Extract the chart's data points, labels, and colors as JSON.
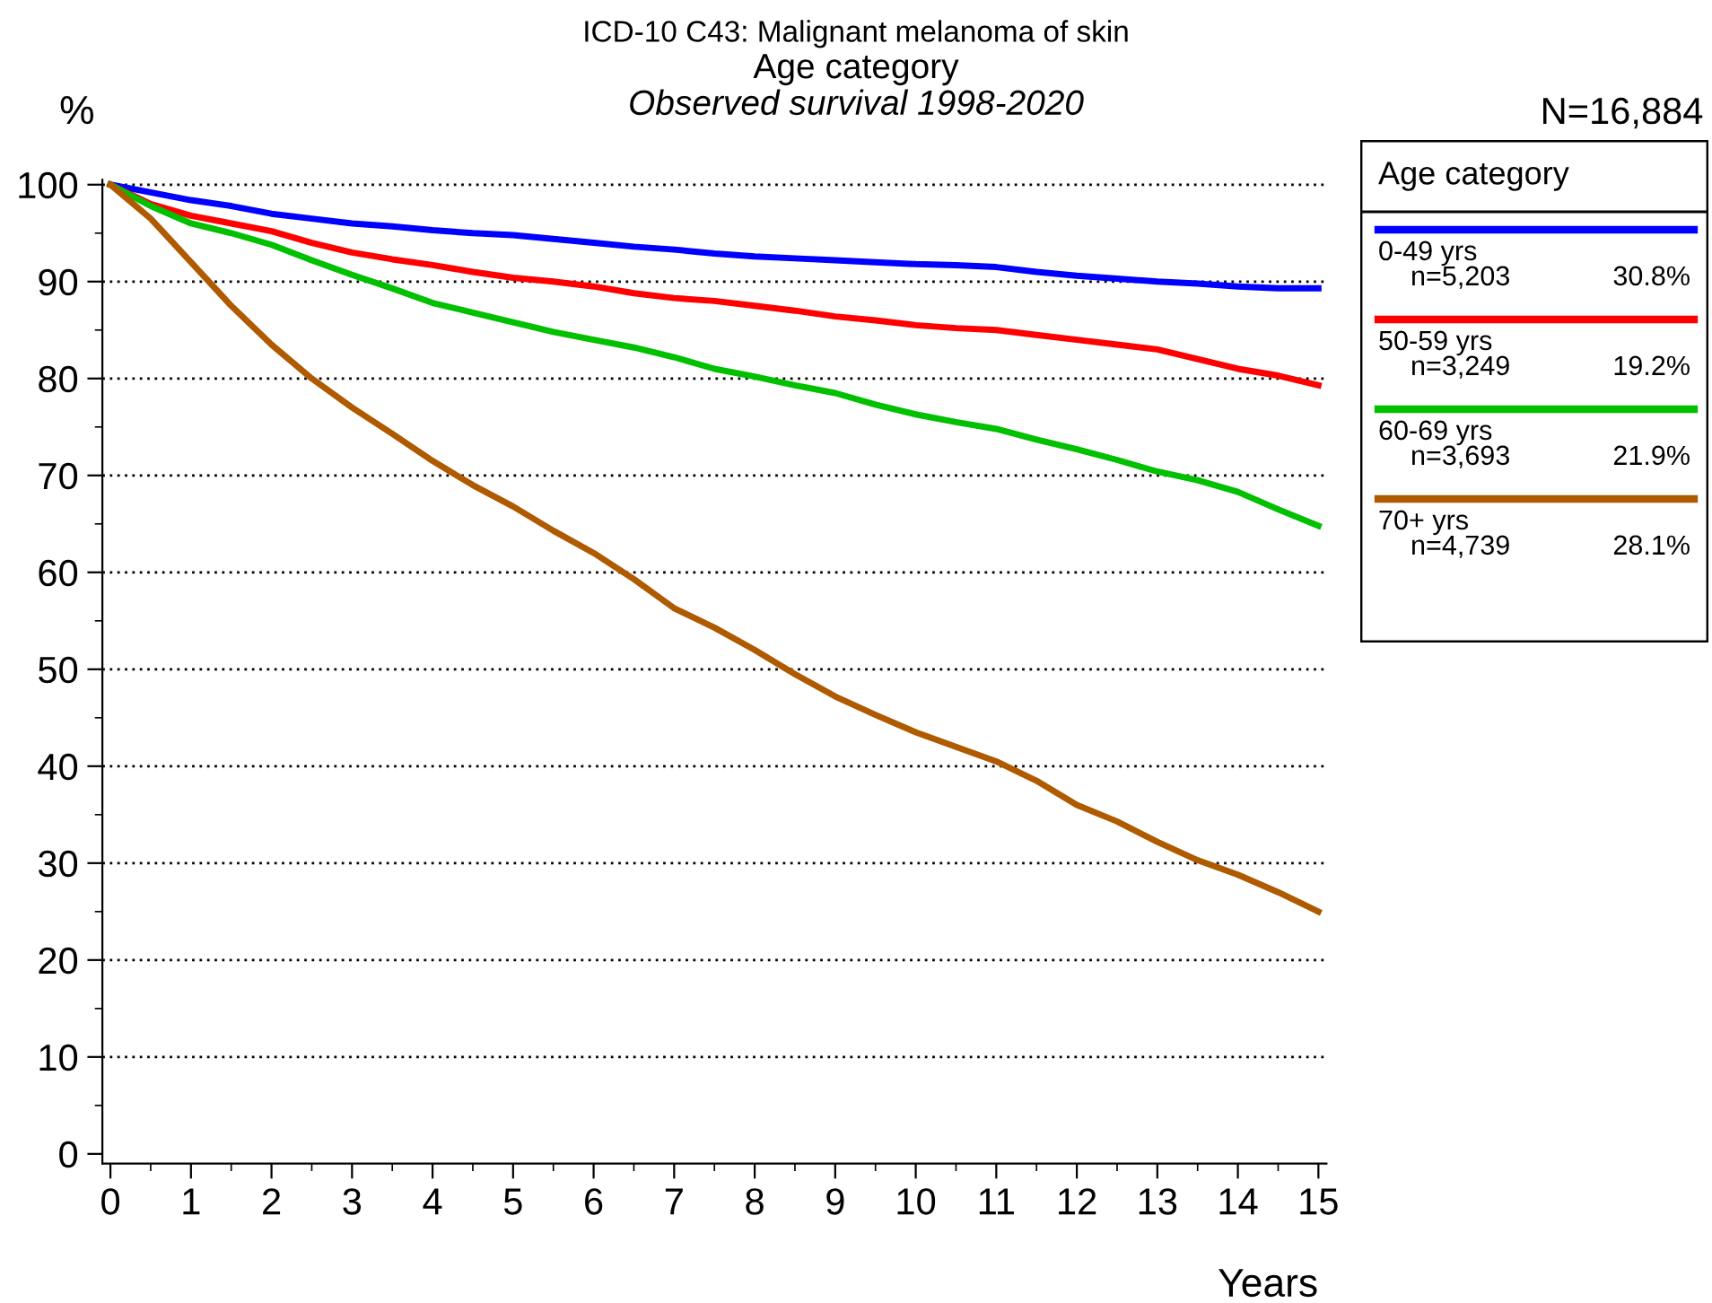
{
  "chart_data": {
    "type": "line",
    "title": "ICD-10 C43: Malignant melanoma of skin",
    "subtitle": "Age category",
    "xlabel": "Years",
    "ylabel": "%",
    "legend_title": "Age category",
    "annotations": [
      "Observed survival 1998-2020",
      "N=16,884",
      "n=5,203",
      "30.8%",
      "n=3,249",
      "19.2%",
      "n=3,693",
      "21.9%",
      "n=4,739",
      "28.1%"
    ],
    "x": [
      0,
      0.5,
      1,
      1.5,
      2,
      2.5,
      3,
      3.5,
      4,
      4.5,
      5,
      5.5,
      6,
      6.5,
      7,
      7.5,
      8,
      8.5,
      9,
      9.5,
      10,
      10.5,
      11,
      11.5,
      12,
      12.5,
      13,
      13.5,
      14,
      14.5,
      15
    ],
    "series": [
      {
        "name": "0-49 yrs",
        "color": "#0000ff",
        "values": [
          100,
          99.2,
          98.4,
          97.8,
          97,
          96.5,
          96,
          95.7,
          95.3,
          95,
          94.8,
          94.4,
          94,
          93.6,
          93.3,
          92.9,
          92.6,
          92.4,
          92.2,
          92,
          91.8,
          91.7,
          91.5,
          91,
          90.6,
          90.3,
          90,
          89.8,
          89.5,
          89.3,
          89.3
        ]
      },
      {
        "name": "50-59 yrs",
        "color": "#ff0000",
        "values": [
          100,
          98,
          96.8,
          96,
          95.2,
          94,
          93,
          92.3,
          91.7,
          91,
          90.4,
          90,
          89.5,
          88.8,
          88.3,
          88,
          87.5,
          87,
          86.4,
          86,
          85.5,
          85.2,
          85,
          84.5,
          84,
          83.5,
          83,
          82,
          81,
          80.3,
          79.3
        ]
      },
      {
        "name": "60-69 yrs",
        "color": "#00c000",
        "values": [
          100,
          97.8,
          96,
          95,
          93.8,
          92.2,
          90.7,
          89.3,
          87.8,
          86.8,
          85.8,
          84.8,
          84,
          83.2,
          82.2,
          81,
          80.2,
          79.3,
          78.5,
          77.3,
          76.3,
          75.5,
          74.8,
          73.7,
          72.7,
          71.6,
          70.4,
          69.5,
          68.3,
          66.5,
          64.8
        ]
      },
      {
        "name": "70+ yrs",
        "color": "#b05a00",
        "values": [
          100,
          96.5,
          92,
          87.5,
          83.5,
          80,
          77,
          74.3,
          71.5,
          69,
          66.8,
          64.3,
          62,
          59.3,
          56.3,
          54.3,
          52,
          49.5,
          47.2,
          45.3,
          43.5,
          42,
          40.5,
          38.5,
          36,
          34.3,
          32.2,
          30.3,
          28.8,
          27,
          25
        ]
      }
    ],
    "xlim": [
      -0.1,
      15.1
    ],
    "ylim": [
      -1,
      100.5
    ],
    "xticks": [
      0,
      1,
      2,
      3,
      4,
      5,
      6,
      7,
      8,
      9,
      10,
      11,
      12,
      13,
      14,
      15
    ],
    "yticks": [
      0,
      10,
      20,
      30,
      40,
      50,
      60,
      70,
      80,
      90,
      100
    ],
    "grid": "y",
    "legend": "right",
    "marker": "none",
    "line_style": "solid"
  }
}
